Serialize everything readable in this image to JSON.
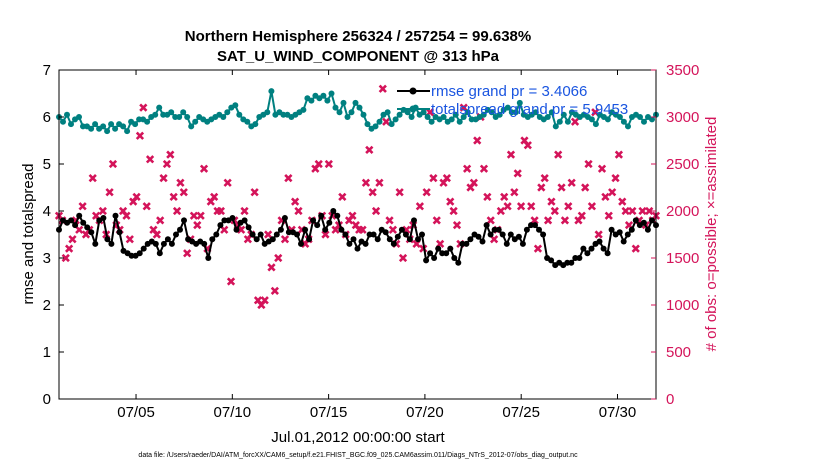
{
  "title_line1": "Northern Hemisphere 256324 / 257254 = 99.638%",
  "title_line2": "SAT_U_WIND_COMPONENT @ 313 hPa",
  "footnote": "data file: /Users/raeder/DAI/ATM_forcXX/CAM6_setup/f.e21.FHIST_BGC.f09_025.CAM6assim.011/Diags_NTrS_2012-07/obs_diag_output.nc",
  "colors": {
    "rmse": "#000000",
    "spread": "#008080",
    "obs": "#d4145a",
    "legend_text": "#1a55e0"
  },
  "chart_data": {
    "type": "line",
    "xlabel": "Jul.01,2012 00:00:00 start",
    "ylabel_left": "rmse and totalspread",
    "ylabel_right": "# of obs: o=possible; ×=assimilated",
    "x_range_days": [
      1,
      32
    ],
    "x_ticks": [
      {
        "day": 5,
        "label": "07/05"
      },
      {
        "day": 10,
        "label": "07/10"
      },
      {
        "day": 15,
        "label": "07/15"
      },
      {
        "day": 20,
        "label": "07/20"
      },
      {
        "day": 25,
        "label": "07/25"
      },
      {
        "day": 30,
        "label": "07/30"
      }
    ],
    "ylim_left": [
      0,
      7
    ],
    "yticks_left": [
      "0",
      "1",
      "2",
      "3",
      "4",
      "5",
      "6",
      "7"
    ],
    "ylim_right": [
      0,
      3500
    ],
    "yticks_right": [
      "0",
      "500",
      "1000",
      "1500",
      "2000",
      "2500",
      "3000",
      "3500"
    ],
    "legend_position": "top-right",
    "series": [
      {
        "name": "rmse grand pr = 3.4066",
        "axis": "left",
        "values": [
          3.6,
          3.8,
          3.75,
          3.8,
          3.7,
          3.9,
          3.75,
          3.65,
          3.55,
          3.3,
          3.8,
          3.85,
          3.4,
          3.3,
          3.9,
          3.55,
          3.15,
          3.1,
          3.05,
          3.05,
          3.1,
          3.2,
          3.3,
          3.35,
          3.3,
          3.1,
          3.3,
          3.4,
          3.3,
          3.5,
          3.6,
          3.8,
          3.4,
          3.35,
          3.3,
          3.35,
          3.3,
          3.0,
          3.4,
          3.5,
          3.7,
          3.8,
          3.8,
          3.85,
          3.6,
          3.75,
          3.8,
          3.65,
          3.5,
          3.4,
          3.5,
          3.3,
          3.35,
          3.4,
          3.5,
          3.6,
          3.85,
          3.55,
          3.55,
          3.5,
          3.3,
          3.6,
          3.4,
          3.8,
          3.7,
          3.9,
          3.6,
          3.75,
          4.0,
          3.9,
          3.6,
          3.5,
          3.3,
          3.4,
          3.2,
          3.35,
          3.3,
          3.5,
          3.5,
          3.4,
          3.6,
          3.55,
          3.4,
          3.3,
          3.45,
          3.6,
          3.5,
          3.4,
          3.8,
          3.4,
          3.5,
          2.95,
          3.1,
          3.0,
          3.2,
          3.1,
          3.1,
          3.2,
          3.0,
          2.9,
          3.3,
          3.3,
          3.4,
          3.5,
          3.45,
          3.35,
          3.7,
          3.5,
          3.6,
          3.6,
          3.5,
          3.3,
          3.5,
          3.4,
          3.45,
          3.3,
          3.6,
          3.7,
          3.7,
          3.6,
          3.5,
          3.0,
          2.95,
          2.85,
          2.9,
          2.85,
          2.9,
          2.9,
          3.0,
          3.0,
          3.2,
          3.1,
          3.2,
          3.3,
          3.35,
          3.2,
          3.1,
          3.6,
          3.5,
          3.55,
          3.35,
          3.5,
          3.6,
          3.8,
          3.7,
          3.75,
          3.6,
          3.8,
          3.7
        ]
      },
      {
        "name": "totalspread grand pr = 5.9453",
        "axis": "left",
        "values": [
          6.0,
          5.9,
          6.05,
          5.85,
          5.95,
          6.0,
          5.8,
          5.8,
          5.75,
          5.85,
          5.75,
          5.8,
          5.7,
          5.85,
          5.75,
          5.85,
          5.8,
          5.7,
          5.9,
          5.85,
          5.95,
          5.95,
          5.9,
          6.0,
          6.05,
          6.2,
          6.05,
          6.05,
          6.1,
          6.0,
          6.0,
          6.1,
          6.0,
          5.8,
          5.9,
          6.0,
          5.95,
          5.9,
          5.95,
          6.0,
          6.05,
          6.0,
          6.1,
          6.2,
          6.25,
          6.05,
          5.95,
          5.9,
          5.8,
          5.85,
          6.0,
          6.05,
          6.1,
          6.55,
          6.05,
          6.1,
          6.05,
          6.05,
          6.0,
          6.05,
          6.1,
          6.15,
          6.4,
          6.35,
          6.45,
          6.4,
          6.45,
          6.35,
          6.5,
          6.2,
          6.1,
          6.3,
          6.0,
          6.1,
          6.3,
          6.2,
          6.05,
          5.85,
          5.75,
          5.8,
          5.9,
          6.05,
          6.1,
          5.85,
          5.95,
          6.05,
          6.15,
          6.1,
          6.0,
          6.2,
          6.05,
          6.1,
          6.0,
          5.9,
          6.0,
          5.95,
          6.0,
          5.9,
          5.95,
          6.05,
          5.9,
          6.0,
          6.1,
          5.95,
          5.95,
          6.0,
          6.05,
          6.15,
          6.1,
          6.0,
          6.05,
          6.15,
          6.2,
          6.1,
          6.1,
          6.3,
          6.05,
          6.0,
          6.05,
          6.1,
          6.0,
          5.95,
          6.0,
          6.1,
          5.8,
          5.9,
          6.05,
          5.9,
          6.1,
          6.05,
          6.0,
          6.05,
          6.0,
          5.95,
          5.85,
          6.05,
          6.0,
          5.95,
          6.1,
          6.05,
          6.0,
          5.9,
          5.8,
          6.0,
          6.05,
          6.0,
          5.9,
          6.0,
          5.95,
          6.05
        ]
      },
      {
        "name": "# of obs assimilated",
        "axis": "right",
        "marker": "x",
        "values": [
          1950,
          1900,
          1500,
          1600,
          1700,
          1900,
          1800,
          2050,
          1750,
          1800,
          2350,
          1950,
          1900,
          2000,
          1750,
          2200,
          2500,
          1850,
          1800,
          2000,
          1950,
          1700,
          2100,
          2150,
          2800,
          3100,
          2050,
          2550,
          1800,
          1750,
          1900,
          2350,
          2500,
          2600,
          2150,
          2000,
          2300,
          2200,
          1550,
          1700,
          1950,
          1850,
          1950,
          2450,
          1600,
          2100,
          2150,
          2000,
          2000,
          1800,
          2300,
          1250,
          1900,
          1850,
          1800,
          2000,
          1700,
          1750,
          2200,
          1050,
          1000,
          1050,
          1750,
          1400,
          1150,
          1500,
          1900,
          1700,
          2350,
          1800,
          2100,
          2000,
          1800,
          1650,
          1700,
          1900,
          2450,
          2500,
          1950,
          1750,
          2500,
          1950,
          1800,
          1850,
          2150,
          1750,
          1900,
          1950,
          1850,
          1800,
          1800,
          2300,
          2650,
          2200,
          2000,
          2300,
          3300,
          2950,
          1900,
          1800,
          1650,
          2200,
          1500,
          1800,
          1700,
          1850,
          1650,
          2050,
          1600,
          2200,
          3050,
          2350,
          1900,
          1650,
          2300,
          2350,
          2100,
          2000,
          1850,
          1650,
          3100,
          2450,
          2250,
          2300,
          2750,
          3000,
          2450,
          2150,
          1900,
          1700,
          1800,
          2000,
          2150,
          2050,
          2600,
          2200,
          2400,
          2050,
          2750,
          2700,
          2050,
          1900,
          1600,
          2250,
          2350,
          1900,
          2100,
          2000,
          2600,
          2250,
          1900,
          2050,
          2300,
          2950,
          1900,
          1950,
          2250,
          2500,
          2050,
          3050,
          1750,
          2450,
          2150,
          1950,
          2200,
          2350,
          2600,
          2100,
          2000,
          1850,
          2000,
          1600,
          1900,
          2000,
          1850,
          2000,
          1900,
          1950
        ]
      }
    ]
  }
}
